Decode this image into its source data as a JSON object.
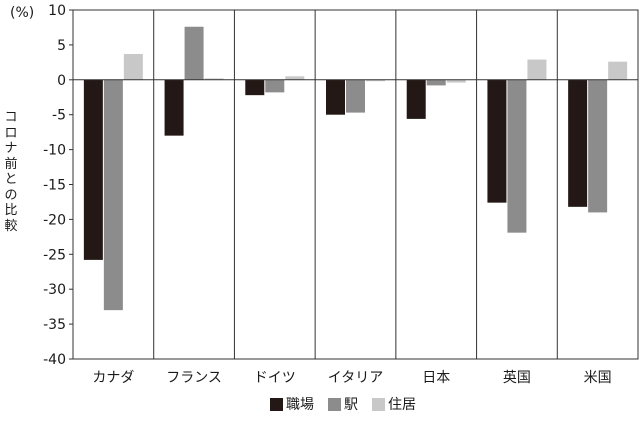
{
  "chart_data": {
    "type": "bar",
    "unit_label": "(%)",
    "ylabel": "コロナ前との比較",
    "ylim": [
      -40,
      10
    ],
    "yticks": [
      10,
      5,
      0,
      -5,
      -10,
      -15,
      -20,
      -25,
      -30,
      -35,
      -40
    ],
    "categories": [
      "カナダ",
      "フランス",
      "ドイツ",
      "イタリア",
      "日本",
      "英国",
      "米国"
    ],
    "series": [
      {
        "name": "職場",
        "color": "#231815",
        "values": [
          -25.8,
          -8.0,
          -2.2,
          -5.0,
          -5.6,
          -17.6,
          -18.2
        ]
      },
      {
        "name": "駅",
        "color": "#8c8c8c",
        "values": [
          -33.0,
          7.6,
          -1.8,
          -4.7,
          -0.8,
          -21.9,
          -19.0
        ]
      },
      {
        "name": "住居",
        "color": "#c8c8c8",
        "values": [
          3.7,
          0.2,
          0.5,
          -0.2,
          -0.4,
          2.9,
          2.6
        ]
      }
    ],
    "grid": false,
    "category_dividers": true,
    "legend_position": "bottom-center"
  }
}
